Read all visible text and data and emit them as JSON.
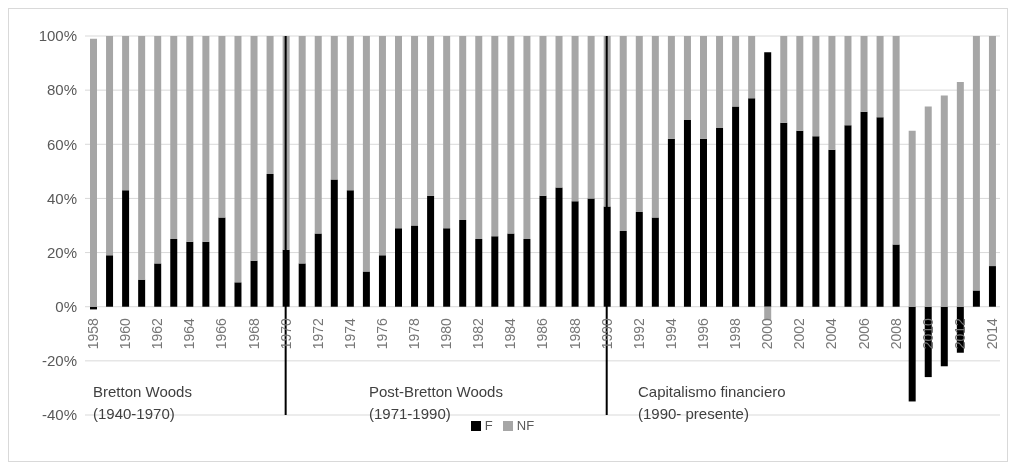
{
  "chart_data": {
    "type": "bar",
    "stacked": true,
    "categories": [
      "1958",
      null,
      "1960",
      null,
      "1962",
      null,
      "1964",
      null,
      "1966",
      null,
      "1968",
      null,
      "1970",
      null,
      "1972",
      null,
      "1974",
      null,
      "1976",
      null,
      "1978",
      null,
      "1980",
      null,
      "1982",
      null,
      "1984",
      null,
      "1986",
      null,
      "1988",
      null,
      "1990",
      null,
      "1992",
      null,
      "1994",
      null,
      "1996",
      null,
      "1998",
      null,
      "2000",
      null,
      "2002",
      null,
      "2004",
      null,
      "2006",
      null,
      "2008",
      null,
      "2010",
      null,
      "2012",
      null,
      "2014"
    ],
    "series": [
      {
        "name": "F",
        "color": "#000000",
        "values": [
          -1,
          19,
          43,
          10,
          16,
          25,
          24,
          24,
          33,
          9,
          17,
          49,
          21,
          16,
          27,
          47,
          43,
          13,
          19,
          29,
          30,
          41,
          29,
          32,
          25,
          26,
          27,
          25,
          41,
          44,
          39,
          40,
          37,
          28,
          35,
          33,
          62,
          69,
          62,
          66,
          74,
          77,
          94,
          68,
          65,
          63,
          58,
          67,
          72,
          70,
          23,
          -35,
          -26,
          -22,
          -17,
          6,
          15
        ]
      },
      {
        "name": "NF",
        "color": "#a6a6a6",
        "values": [
          99,
          81,
          57,
          90,
          84,
          75,
          76,
          76,
          67,
          91,
          83,
          51,
          79,
          84,
          73,
          53,
          57,
          87,
          81,
          71,
          70,
          59,
          71,
          68,
          75,
          74,
          73,
          75,
          59,
          56,
          61,
          60,
          63,
          72,
          65,
          67,
          38,
          31,
          38,
          34,
          26,
          23,
          -5,
          32,
          35,
          37,
          42,
          33,
          28,
          30,
          77,
          65,
          74,
          78,
          83,
          94,
          85
        ]
      }
    ],
    "ylim": [
      -40,
      100
    ],
    "yticks": [
      {
        "value": -40,
        "label": "-40%"
      },
      {
        "value": -20,
        "label": "-20%"
      },
      {
        "value": 0,
        "label": "0%"
      },
      {
        "value": 20,
        "label": "20%"
      },
      {
        "value": 40,
        "label": "40%"
      },
      {
        "value": 60,
        "label": "60%"
      },
      {
        "value": 80,
        "label": "80%"
      },
      {
        "value": 100,
        "label": "100%"
      }
    ],
    "grid": "y",
    "legend": "bottom",
    "ref_lines": [
      {
        "axis": "x",
        "value": "1970",
        "color": "#000000"
      },
      {
        "axis": "x",
        "value": "1990",
        "color": "#000000"
      }
    ],
    "annotations": [
      "Bretton Woods\n(1940-1970)",
      "Post-Bretton Woods\n(1971-1990)",
      "Capitalismo financiero\n(1990- presente)"
    ]
  }
}
